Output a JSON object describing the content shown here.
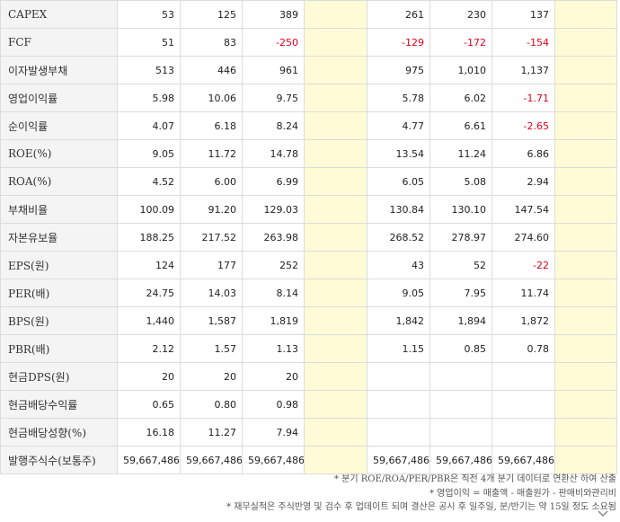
{
  "rows": [
    {
      "label": "CAPEX",
      "values": [
        "53",
        "125",
        "389",
        "",
        "261",
        "230",
        "137",
        ""
      ]
    },
    {
      "label": "FCF",
      "values": [
        "51",
        "83",
        "-250",
        "",
        "-129",
        "-172",
        "-154",
        ""
      ]
    },
    {
      "label": "이자발생부채",
      "values": [
        "513",
        "446",
        "961",
        "",
        "975",
        "1,010",
        "1,137",
        ""
      ]
    },
    {
      "label": "영업이익률",
      "values": [
        "5.98",
        "10.06",
        "9.75",
        "",
        "5.78",
        "6.02",
        "-1.71",
        ""
      ]
    },
    {
      "label": "순이익률",
      "values": [
        "4.07",
        "6.18",
        "8.24",
        "",
        "4.77",
        "6.61",
        "-2.65",
        ""
      ]
    },
    {
      "label": "ROE(%)",
      "values": [
        "9.05",
        "11.72",
        "14.78",
        "",
        "13.54",
        "11.24",
        "6.86",
        ""
      ]
    },
    {
      "label": "ROA(%)",
      "values": [
        "4.52",
        "6.00",
        "6.99",
        "",
        "6.05",
        "5.08",
        "2.94",
        ""
      ]
    },
    {
      "label": "부채비율",
      "values": [
        "100.09",
        "91.20",
        "129.03",
        "",
        "130.84",
        "130.10",
        "147.54",
        ""
      ]
    },
    {
      "label": "자본유보율",
      "values": [
        "188.25",
        "217.52",
        "263.98",
        "",
        "268.52",
        "278.97",
        "274.60",
        ""
      ]
    },
    {
      "label": "EPS(원)",
      "values": [
        "124",
        "177",
        "252",
        "",
        "43",
        "52",
        "-22",
        ""
      ]
    },
    {
      "label": "PER(배)",
      "values": [
        "24.75",
        "14.03",
        "8.14",
        "",
        "9.05",
        "7.95",
        "11.74",
        ""
      ]
    },
    {
      "label": "BPS(원)",
      "values": [
        "1,440",
        "1,587",
        "1,819",
        "",
        "1,842",
        "1,894",
        "1,872",
        ""
      ]
    },
    {
      "label": "PBR(배)",
      "values": [
        "2.12",
        "1.57",
        "1.13",
        "",
        "1.15",
        "0.85",
        "0.78",
        ""
      ]
    },
    {
      "label": "현금DPS(원)",
      "values": [
        "20",
        "20",
        "20",
        "",
        "",
        "",
        "",
        ""
      ]
    },
    {
      "label": "현금배당수익률",
      "values": [
        "0.65",
        "0.80",
        "0.98",
        "",
        "",
        "",
        "",
        ""
      ]
    },
    {
      "label": "현금배당성향(%)",
      "values": [
        "16.18",
        "11.27",
        "7.94",
        "",
        "",
        "",
        "",
        ""
      ]
    },
    {
      "label": "발행주식수(보통주)",
      "values": [
        "59,667,486",
        "59,667,486",
        "59,667,486",
        "",
        "59,667,486",
        "59,667,486",
        "59,667,486",
        ""
      ]
    }
  ],
  "notes": [
    "* 분기 ROE/ROA/PER/PBR은 직전 4개 분기 데이터로 연환산 하여 산출",
    "* 영업이익 = 매출액 - 매출원가 - 판매비와관리비",
    "* 재무실적은 주식반영 및 검수 후 업데이트 되며 결산은 공시 후 일주일, 분/반기는 약 15일 정도 소요됨"
  ],
  "icons": {
    "expand": "chevron-down-icon"
  },
  "colors": {
    "negative": "#e0001b",
    "highlight": "#fefbd6",
    "label_bg": "#f4f4f4",
    "border": "#dcdcdc"
  }
}
